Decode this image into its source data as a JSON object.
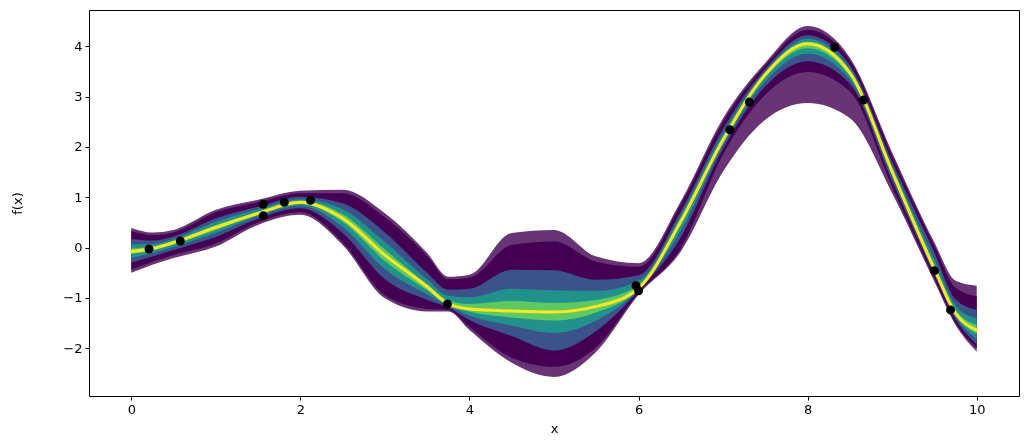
{
  "chart_data": {
    "type": "line",
    "xlabel": "x",
    "ylabel": "f(x)",
    "xlim": [
      -0.5,
      10.5
    ],
    "xticks": [
      0,
      2,
      4,
      6,
      8,
      10
    ],
    "ylim": [
      -2.95,
      4.72
    ],
    "yticks": [
      -2,
      -1,
      0,
      1,
      2,
      3,
      4
    ],
    "x": [
      0,
      0.25,
      0.5,
      1,
      1.5,
      2,
      2.5,
      3,
      3.5,
      3.75,
      4,
      4.5,
      5,
      5.5,
      6,
      6.5,
      7,
      7.5,
      8,
      8.5,
      9,
      9.5,
      9.75,
      10
    ],
    "series": [
      {
        "type": "line",
        "color": "#693476",
        "values": [
          null,
          null,
          null,
          null,
          null,
          null,
          null,
          null,
          null,
          null,
          null,
          null,
          null,
          null,
          null,
          null,
          null,
          null,
          null,
          null,
          null,
          null,
          null,
          null
        ],
        "upper": [
          0.39,
          0.3,
          0.35,
          0.75,
          0.95,
          1.13,
          1.15,
          0.68,
          -0.11,
          -0.58,
          -0.54,
          0.29,
          0.35,
          -0.18,
          -0.31,
          0.92,
          2.57,
          3.67,
          4.4,
          3.77,
          1.89,
          0.1,
          -0.66,
          -0.76
        ],
        "lower": [
          -0.5,
          -0.34,
          -0.21,
          0.02,
          0.45,
          0.65,
          0.05,
          -1.01,
          -1.27,
          -1.27,
          -1.64,
          -2.29,
          -2.57,
          -2.07,
          -0.94,
          -0.08,
          1.51,
          2.54,
          2.87,
          2.57,
          1.08,
          -0.68,
          -1.54,
          -2.07
        ]
      },
      {
        "type": "line",
        "color": "#440154",
        "values": [
          null,
          null,
          null,
          null,
          null,
          null,
          null,
          null,
          null,
          null,
          null,
          null,
          null,
          null,
          null,
          null,
          null,
          null,
          null,
          null,
          null,
          null,
          null,
          null
        ],
        "upper": [
          0.33,
          0.25,
          0.3,
          0.7,
          0.9,
          1.08,
          1.08,
          0.6,
          -0.17,
          -0.63,
          -0.6,
          0.05,
          0.12,
          -0.28,
          -0.38,
          0.86,
          2.5,
          3.62,
          4.33,
          3.72,
          1.82,
          0.03,
          -0.8,
          -0.97
        ],
        "lower": [
          -0.44,
          -0.28,
          -0.15,
          0.08,
          0.5,
          0.7,
          0.1,
          -0.95,
          -1.22,
          -1.24,
          -1.58,
          -2.19,
          -2.37,
          -1.98,
          -0.9,
          -0.02,
          1.85,
          3.04,
          3.49,
          3.1,
          1.2,
          -0.62,
          -1.5,
          -2.0
        ]
      },
      {
        "type": "line",
        "color": "#3b528b",
        "values": [
          null,
          null,
          null,
          null,
          null,
          null,
          null,
          null,
          null,
          null,
          null,
          null,
          null,
          null,
          null,
          null,
          null,
          null,
          null,
          null,
          null,
          null,
          null,
          null
        ],
        "upper": [
          0.17,
          0.14,
          0.22,
          0.58,
          0.81,
          1.01,
          0.88,
          0.3,
          -0.5,
          -0.84,
          -0.82,
          -0.44,
          -0.45,
          -0.64,
          -0.55,
          0.72,
          2.36,
          3.55,
          4.22,
          3.62,
          1.7,
          -0.1,
          -1.03,
          -1.24
        ],
        "lower": [
          -0.3,
          -0.18,
          -0.05,
          0.21,
          0.57,
          0.78,
          0.29,
          -0.63,
          -1.04,
          -1.19,
          -1.44,
          -1.76,
          -2.05,
          -1.66,
          -0.86,
          0.2,
          1.97,
          3.2,
          3.7,
          3.25,
          1.32,
          -0.54,
          -1.42,
          -1.93
        ]
      },
      {
        "type": "line",
        "color": "#21918c",
        "values": [
          null,
          null,
          null,
          null,
          null,
          null,
          null,
          null,
          null,
          null,
          null,
          null,
          null,
          null,
          null,
          null,
          null,
          null,
          null,
          null,
          null,
          null,
          null,
          null
        ],
        "upper": [
          0.06,
          0.07,
          0.17,
          0.51,
          0.76,
          0.96,
          0.76,
          0.11,
          -0.63,
          -0.96,
          -0.99,
          -0.82,
          -0.85,
          -0.86,
          -0.66,
          0.64,
          2.27,
          3.5,
          4.15,
          3.56,
          1.62,
          -0.24,
          -1.15,
          -1.41
        ],
        "lower": [
          -0.21,
          -0.11,
          0.01,
          0.29,
          0.62,
          0.83,
          0.41,
          -0.43,
          -0.93,
          -1.16,
          -1.35,
          -1.55,
          -1.7,
          -1.45,
          -0.84,
          0.33,
          2.04,
          3.3,
          3.85,
          3.34,
          1.4,
          -0.5,
          -1.38,
          -1.81
        ]
      },
      {
        "type": "line",
        "color": "#5ec962",
        "values": [
          null,
          null,
          null,
          null,
          null,
          null,
          null,
          null,
          null,
          null,
          null,
          null,
          null,
          null,
          null,
          null,
          null,
          null,
          null,
          null,
          null,
          null,
          null,
          null
        ],
        "upper": [
          -0.02,
          0.02,
          0.13,
          0.45,
          0.71,
          0.93,
          0.66,
          -0.04,
          -0.73,
          -1.05,
          -1.12,
          -1.06,
          -1.1,
          -1.04,
          -0.75,
          0.57,
          2.19,
          3.47,
          4.09,
          3.51,
          1.56,
          -0.35,
          -1.24,
          -1.54
        ],
        "lower": [
          -0.13,
          -0.06,
          0.06,
          0.35,
          0.65,
          0.87,
          0.51,
          -0.27,
          -0.85,
          -1.14,
          -1.27,
          -1.39,
          -1.45,
          -1.29,
          -0.83,
          0.44,
          2.1,
          3.38,
          3.96,
          3.41,
          1.46,
          -0.46,
          -1.34,
          -1.71
        ]
      },
      {
        "type": "line",
        "color": "#fde725",
        "values": [
          -0.08,
          -0.02,
          0.1,
          0.4,
          0.68,
          0.9,
          0.58,
          -0.15,
          -0.78,
          -1.12,
          -1.22,
          -1.26,
          -1.28,
          -1.17,
          -0.81,
          0.52,
          2.14,
          3.44,
          4.05,
          3.47,
          1.51,
          -0.43,
          -1.31,
          -1.64
        ]
      },
      {
        "type": "scatter",
        "color": "#000000",
        "marker": "circle",
        "x": [
          0.21,
          0.58,
          1.56,
          1.56,
          1.81,
          2.12,
          3.74,
          5.97,
          6.0,
          7.08,
          7.31,
          8.32,
          8.66,
          9.5,
          9.69
        ],
        "values": [
          -0.03,
          0.13,
          0.86,
          0.63,
          0.9,
          0.94,
          -1.12,
          -0.76,
          -0.86,
          2.34,
          2.89,
          3.98,
          2.93,
          -0.46,
          -1.24
        ]
      }
    ]
  }
}
